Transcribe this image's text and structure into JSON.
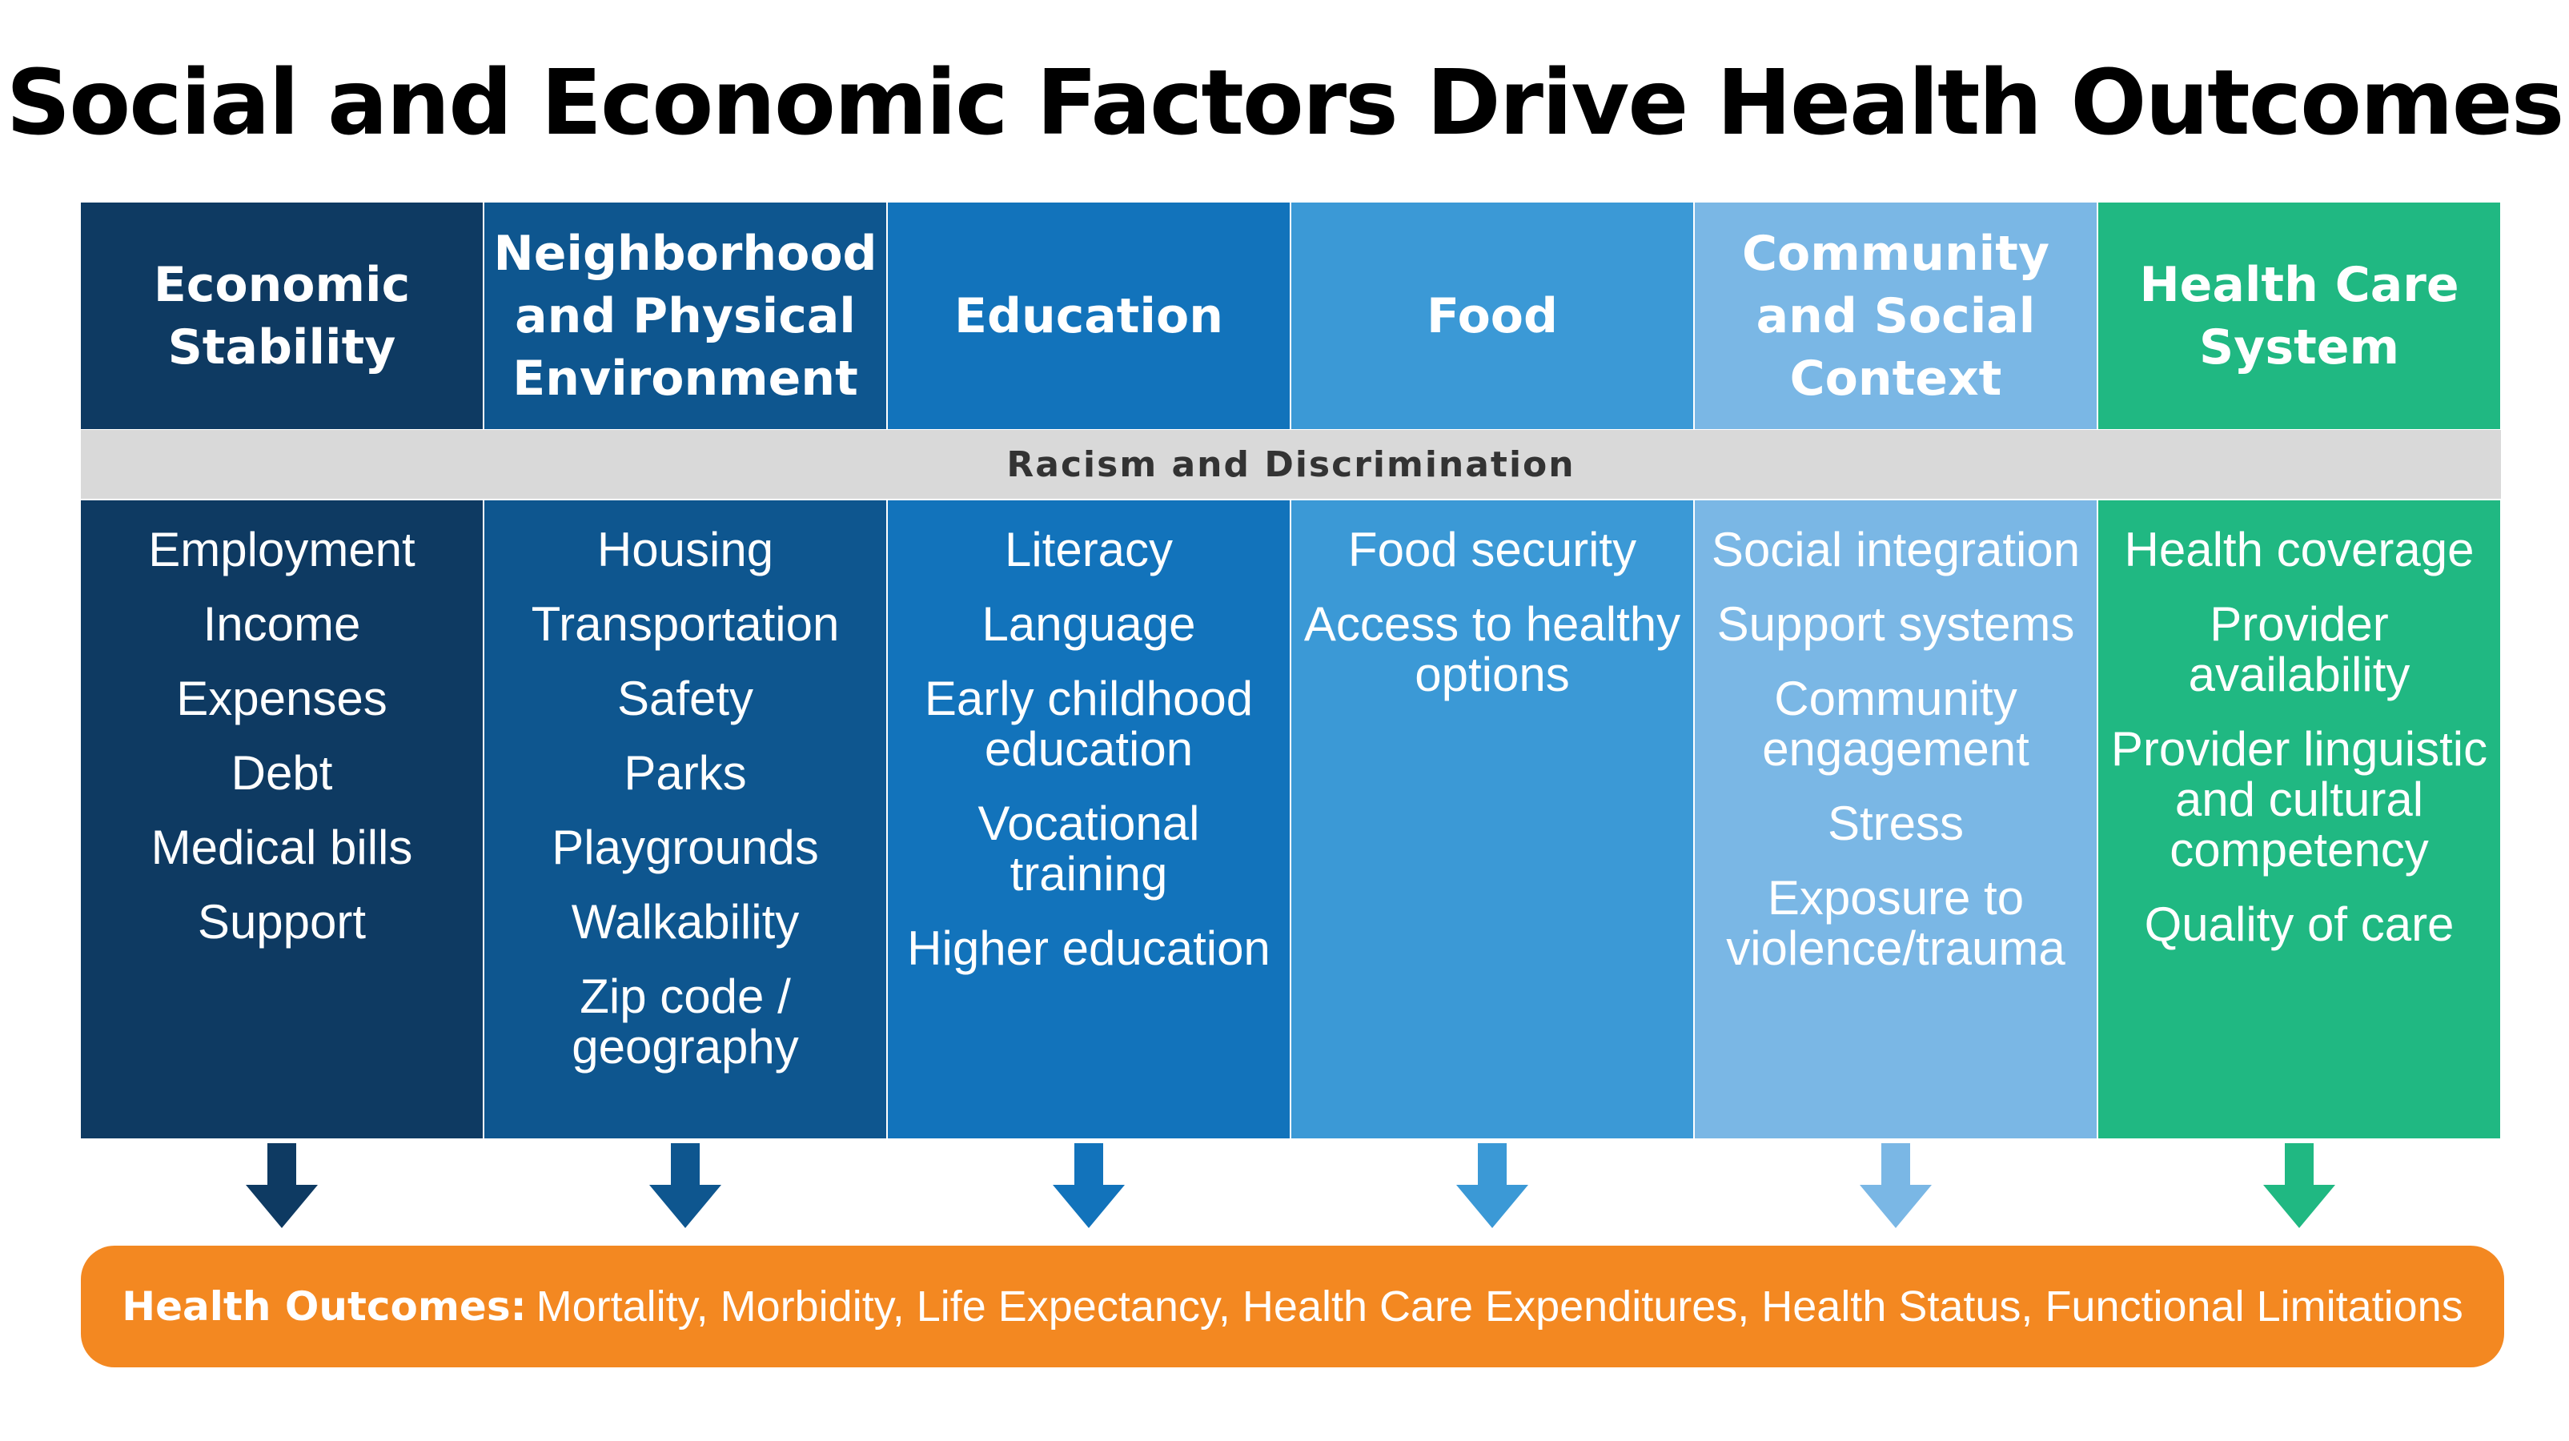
{
  "title": "Social and Economic Factors Drive Health Outcomes",
  "band": "Racism and Discrimination",
  "columns": [
    {
      "heading": "Economic Stability",
      "color": "#0e3a62",
      "items": [
        "Employment",
        "Income",
        "Expenses",
        "Debt",
        "Medical bills",
        "Support"
      ]
    },
    {
      "heading": "Neighborhood and Physical Environment",
      "color": "#0e568f",
      "items": [
        "Housing",
        "Transportation",
        "Safety",
        "Parks",
        "Playgrounds",
        "Walkability",
        "Zip code / geography"
      ]
    },
    {
      "heading": "Education",
      "color": "#1273bb",
      "items": [
        "Literacy",
        "Language",
        "Early childhood education",
        "Vocational training",
        "Higher education"
      ]
    },
    {
      "heading": "Food",
      "color": "#3b99d6",
      "items": [
        "Food security",
        "Access to healthy options"
      ]
    },
    {
      "heading": "Community and Social Context",
      "color": "#7ab7e5",
      "items": [
        "Social integration",
        "Support systems",
        "Community engagement",
        "Stress",
        "Exposure to violence/trauma"
      ]
    },
    {
      "heading": "Health Care System",
      "color": "#20b882",
      "items": [
        "Health coverage",
        "Provider availability",
        "Provider linguistic and cultural competency",
        "Quality of care"
      ]
    }
  ],
  "outcomes": {
    "label": "Health Outcomes:",
    "text": "Mortality, Morbidity, Life Expectancy, Health Care Expenditures, Health Status, Functional Limitations",
    "color": "#f38821"
  }
}
